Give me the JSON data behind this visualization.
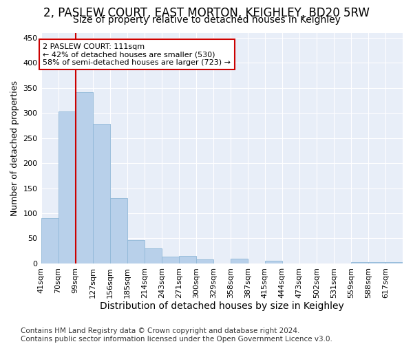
{
  "title": "2, PASLEW COURT, EAST MORTON, KEIGHLEY, BD20 5RW",
  "subtitle": "Size of property relative to detached houses in Keighley",
  "xlabel": "Distribution of detached houses by size in Keighley",
  "ylabel": "Number of detached properties",
  "bar_labels": [
    "41sqm",
    "70sqm",
    "99sqm",
    "127sqm",
    "156sqm",
    "185sqm",
    "214sqm",
    "243sqm",
    "271sqm",
    "300sqm",
    "329sqm",
    "358sqm",
    "387sqm",
    "415sqm",
    "444sqm",
    "473sqm",
    "502sqm",
    "531sqm",
    "559sqm",
    "588sqm",
    "617sqm"
  ],
  "bar_values": [
    91,
    303,
    341,
    278,
    130,
    46,
    30,
    13,
    15,
    8,
    0,
    9,
    0,
    5,
    0,
    0,
    0,
    0,
    2,
    2,
    2
  ],
  "bar_color": "#b8d0ea",
  "bar_edge_color": "#90b8d8",
  "vline_color": "#cc0000",
  "vline_x": 2.0,
  "annotation_text": "2 PASLEW COURT: 111sqm\n← 42% of detached houses are smaller (530)\n58% of semi-detached houses are larger (723) →",
  "annotation_box_facecolor": "white",
  "annotation_box_edgecolor": "#cc0000",
  "figure_bg": "white",
  "plot_bg": "#e8eef8",
  "grid_color": "white",
  "ylim": [
    0,
    460
  ],
  "yticks": [
    0,
    50,
    100,
    150,
    200,
    250,
    300,
    350,
    400,
    450
  ],
  "footer": "Contains HM Land Registry data © Crown copyright and database right 2024.\nContains public sector information licensed under the Open Government Licence v3.0.",
  "title_fontsize": 12,
  "subtitle_fontsize": 10,
  "xlabel_fontsize": 10,
  "ylabel_fontsize": 9,
  "tick_fontsize": 8,
  "annot_fontsize": 8,
  "footer_fontsize": 7.5
}
